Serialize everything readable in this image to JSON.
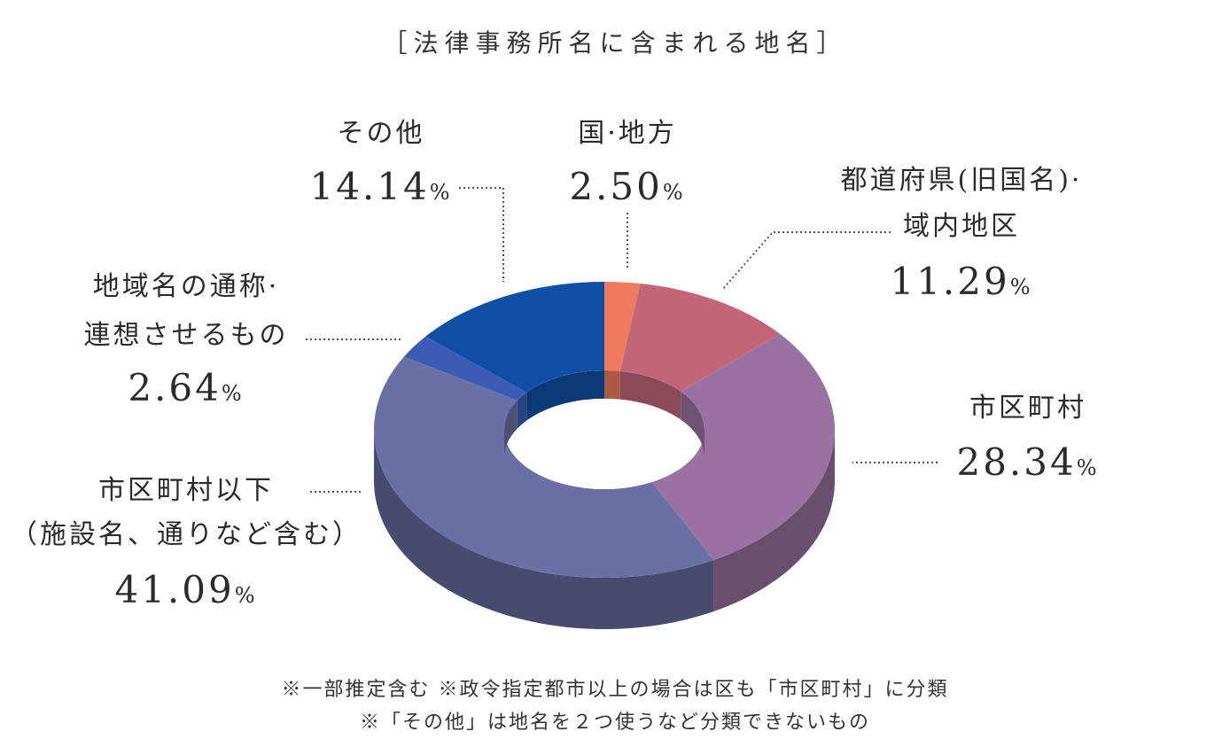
{
  "chart_data": {
    "type": "pie",
    "title": "［法律事務所名に含まれる地名］",
    "unit": "%",
    "categories": [
      "国·地方",
      "都道府県(旧国名)·域内地区",
      "市区町村",
      "市区町村以下（施設名、通りなど含む）",
      "地域名の通称·連想させるもの",
      "その他"
    ],
    "values": [
      2.5,
      11.29,
      28.34,
      41.09,
      2.64,
      14.14
    ],
    "value_labels": [
      "2.50",
      "11.29",
      "28.34",
      "41.09",
      "2.64",
      "14.14"
    ],
    "label_lines": [
      [
        "国·地方"
      ],
      [
        "都道府県(旧国名)·",
        "域内地区"
      ],
      [
        "市区町村"
      ],
      [
        "市区町村以下",
        "（施設名、通りなど含む）"
      ],
      [
        "地域名の通称·",
        "連想させるもの"
      ],
      [
        "その他"
      ]
    ],
    "colors": [
      "#f07a5e",
      "#c26577",
      "#9a72a2",
      "#6a6fa5",
      "#3a5cb5",
      "#0f4fa6"
    ],
    "notes": [
      "※一部推定含む ※政令指定都市以上の場合は区も「市区町村」に分類",
      "※「その他」は地名を２つ使うなど分類できないもの"
    ]
  }
}
